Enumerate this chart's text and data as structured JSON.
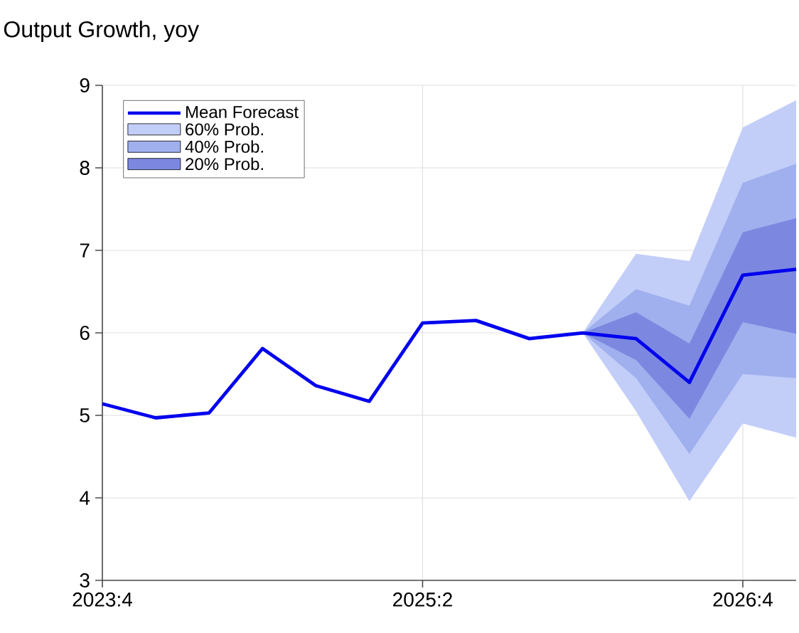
{
  "chart_data": {
    "type": "line",
    "title": "Output Growth, yoy",
    "x": [
      "2023-10",
      "2024-01",
      "2024-04",
      "2024-07",
      "2024-10",
      "2025-01",
      "2025-04",
      "2025-07",
      "2025-10",
      "2026-01",
      "2026-04",
      "2026-07",
      "2026-10",
      "2027-01"
    ],
    "series": [
      {
        "name": "Mean Forecast",
        "color": "#0000ee",
        "values": [
          5.14,
          4.97,
          5.03,
          5.81,
          5.36,
          5.17,
          6.12,
          6.15,
          5.93,
          6.0,
          5.93,
          5.4,
          6.7,
          6.77
        ]
      },
      {
        "name": "60% Prob.",
        "color": "#c2cef8",
        "x": [
          "2026-01",
          "2026-04",
          "2026-07",
          "2026-10",
          "2027-01"
        ],
        "values": [
          null,
          null,
          null,
          null,
          null
        ],
        "lower": [
          6.0,
          5.05,
          3.96,
          4.9,
          4.73
        ],
        "upper": [
          6.0,
          6.96,
          6.87,
          8.49,
          8.82
        ]
      },
      {
        "name": "40% Prob.",
        "color": "#a0b0ee",
        "x": [
          "2026-01",
          "2026-04",
          "2026-07",
          "2026-10",
          "2027-01"
        ],
        "values": [
          null,
          null,
          null,
          null,
          null
        ],
        "lower": [
          6.0,
          5.45,
          4.53,
          5.5,
          5.45
        ],
        "upper": [
          6.0,
          6.53,
          6.33,
          7.82,
          8.05
        ]
      },
      {
        "name": "20% Prob.",
        "color": "#7c88e0",
        "x": [
          "2026-01",
          "2026-04",
          "2026-07",
          "2026-10",
          "2027-01"
        ],
        "values": [
          null,
          null,
          null,
          null,
          null
        ],
        "lower": [
          6.0,
          5.67,
          4.96,
          6.13,
          5.99
        ],
        "upper": [
          6.0,
          6.25,
          5.87,
          7.22,
          7.39
        ]
      }
    ],
    "xlim": [
      "2023-10",
      "2027-01"
    ],
    "xticks": [
      {
        "value": "2023-10",
        "label": "2023:4"
      },
      {
        "value": "2025-04",
        "label": "2025:2"
      },
      {
        "value": "2026-10",
        "label": "2026:4"
      }
    ],
    "ylim": [
      3,
      9
    ],
    "yticks": [
      3,
      4,
      5,
      6,
      7,
      8,
      9
    ],
    "grid": true,
    "legend": "top left"
  }
}
